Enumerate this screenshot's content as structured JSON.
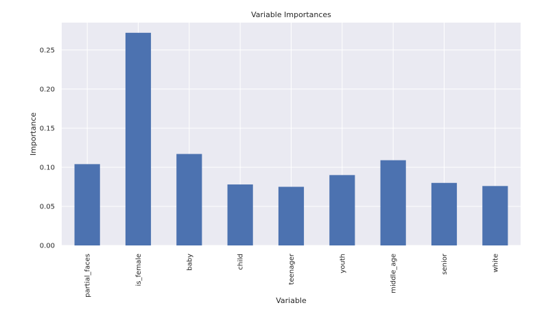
{
  "chart_data": {
    "type": "bar",
    "title": "Variable Importances",
    "xlabel": "Variable",
    "ylabel": "Importance",
    "categories": [
      "partial_faces",
      "is_female",
      "baby",
      "child",
      "teenager",
      "youth",
      "middle_age",
      "senior",
      "white"
    ],
    "values": [
      0.104,
      0.272,
      0.117,
      0.078,
      0.075,
      0.09,
      0.109,
      0.08,
      0.076
    ],
    "ylim": [
      0,
      0.285
    ],
    "yticks": [
      0.0,
      0.05,
      0.1,
      0.15,
      0.2,
      0.25
    ],
    "ytick_labels": [
      "0.00",
      "0.05",
      "0.10",
      "0.15",
      "0.20",
      "0.25"
    ],
    "grid": true,
    "colors": {
      "bar": "#4c72b0",
      "plot_background": "#eaeaf2",
      "grid": "#ffffff"
    }
  }
}
